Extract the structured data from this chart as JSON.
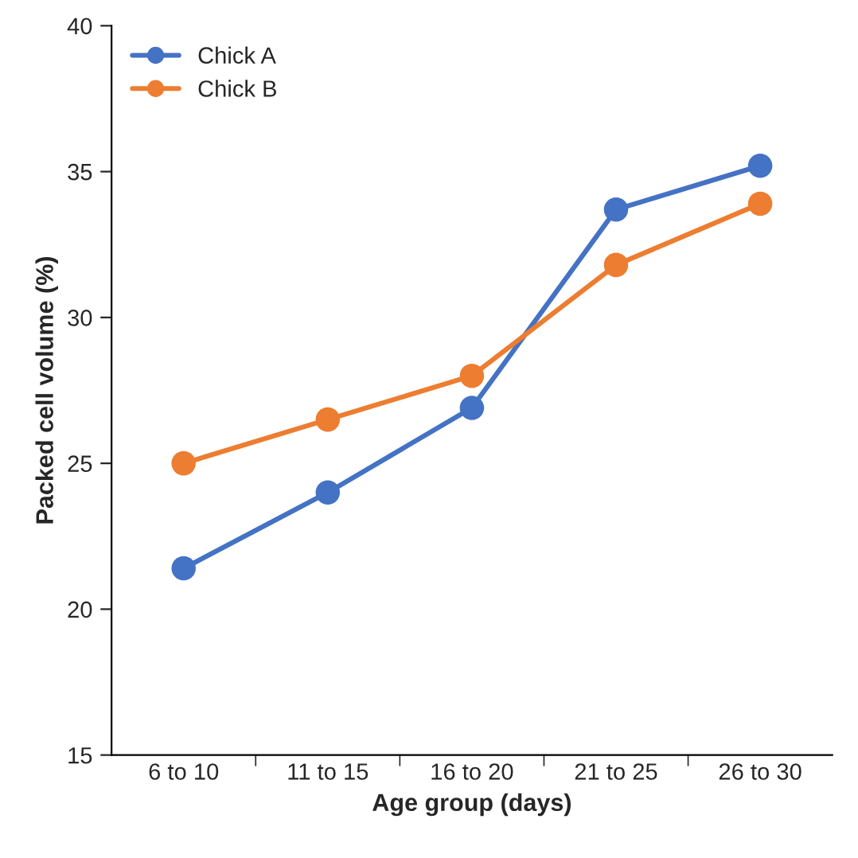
{
  "chart_data": {
    "type": "line",
    "xlabel": "Age group (days)",
    "ylabel": "Packed cell volume (%)",
    "categories": [
      "6 to 10",
      "11 to 15",
      "16 to 20",
      "21 to 25",
      "26 to 30"
    ],
    "series": [
      {
        "name": "Chick A",
        "color": "#4472c4",
        "values": [
          21.4,
          24.0,
          26.9,
          33.7,
          35.2
        ]
      },
      {
        "name": "Chick B",
        "color": "#ed7d31",
        "values": [
          25.0,
          26.5,
          28.0,
          31.8,
          33.9
        ]
      }
    ],
    "ylim": [
      15,
      40
    ],
    "yticks": [
      15,
      20,
      25,
      30,
      35,
      40
    ],
    "grid": false,
    "legend": "top left",
    "marker": "circle",
    "line_style": "solid"
  }
}
